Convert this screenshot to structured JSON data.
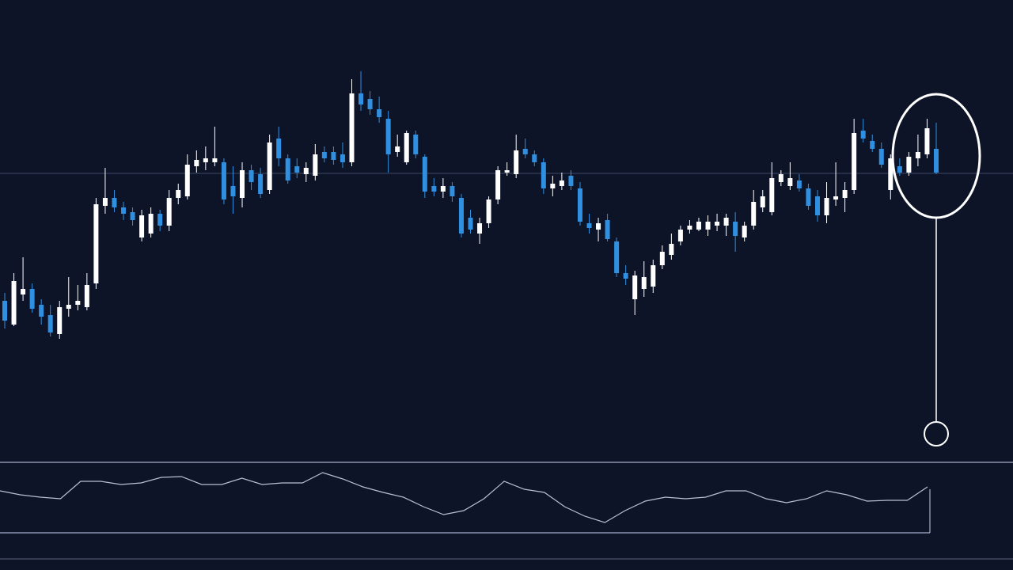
{
  "chart_data": {
    "type": "candlestick",
    "up_color": "#ffffff",
    "down_color": "#2f8fe0",
    "background": "#0d1428",
    "ylim": [
      20,
      600
    ],
    "level": 381,
    "open": [
      220,
      190,
      228,
      235,
      215,
      202,
      178,
      210,
      215,
      212,
      242,
      340,
      350,
      338,
      332,
      300,
      305,
      330,
      315,
      350,
      352,
      390,
      395,
      395,
      395,
      365,
      350,
      385,
      380,
      360,
      425,
      400,
      390,
      380,
      378,
      408,
      408,
      405,
      395,
      482,
      475,
      462,
      450,
      408,
      395,
      430,
      402,
      365,
      358,
      365,
      350,
      325,
      305,
      318,
      348,
      382,
      380,
      412,
      405,
      395,
      362,
      365,
      378,
      362,
      318,
      310,
      322,
      295,
      255,
      222,
      235,
      238,
      265,
      278,
      295,
      310,
      310,
      310,
      315,
      315,
      320,
      300,
      315,
      338,
      332,
      370,
      365,
      372,
      362,
      352,
      328,
      348,
      350,
      360,
      435,
      422,
      412,
      360,
      390,
      382,
      400,
      405,
      412
    ],
    "high": [
      230,
      255,
      275,
      242,
      222,
      215,
      220,
      250,
      240,
      255,
      350,
      388,
      360,
      345,
      338,
      335,
      338,
      335,
      360,
      368,
      405,
      410,
      415,
      440,
      400,
      390,
      395,
      392,
      388,
      430,
      440,
      405,
      400,
      395,
      418,
      415,
      415,
      420,
      500,
      510,
      485,
      478,
      460,
      430,
      435,
      435,
      405,
      375,
      375,
      370,
      355,
      335,
      325,
      352,
      390,
      395,
      430,
      425,
      410,
      400,
      378,
      382,
      385,
      370,
      330,
      325,
      330,
      300,
      265,
      258,
      270,
      272,
      290,
      305,
      315,
      322,
      325,
      328,
      330,
      330,
      332,
      320,
      360,
      360,
      395,
      385,
      395,
      380,
      368,
      360,
      370,
      395,
      370,
      450,
      450,
      430,
      420,
      405,
      400,
      408,
      430,
      450,
      445
    ],
    "low": [
      185,
      188,
      220,
      205,
      190,
      175,
      172,
      200,
      208,
      208,
      235,
      330,
      332,
      322,
      315,
      295,
      300,
      308,
      308,
      342,
      348,
      382,
      385,
      390,
      342,
      330,
      338,
      360,
      350,
      355,
      390,
      368,
      375,
      370,
      372,
      395,
      392,
      388,
      390,
      460,
      455,
      445,
      382,
      402,
      392,
      400,
      350,
      352,
      350,
      345,
      300,
      305,
      292,
      312,
      342,
      378,
      375,
      400,
      390,
      355,
      352,
      360,
      360,
      315,
      305,
      295,
      295,
      250,
      240,
      202,
      225,
      230,
      260,
      272,
      290,
      305,
      308,
      302,
      308,
      302,
      282,
      295,
      310,
      332,
      328,
      365,
      360,
      358,
      335,
      320,
      318,
      340,
      332,
      355,
      420,
      408,
      388,
      348,
      378,
      378,
      390,
      400,
      380
    ],
    "close": [
      195,
      245,
      235,
      210,
      200,
      180,
      212,
      215,
      220,
      240,
      342,
      350,
      338,
      330,
      322,
      328,
      330,
      315,
      350,
      360,
      392,
      398,
      400,
      400,
      348,
      352,
      385,
      370,
      355,
      420,
      400,
      372,
      382,
      388,
      405,
      400,
      398,
      395,
      482,
      468,
      462,
      452,
      405,
      415,
      432,
      405,
      358,
      358,
      365,
      352,
      305,
      310,
      318,
      348,
      385,
      385,
      410,
      405,
      395,
      362,
      368,
      372,
      365,
      320,
      312,
      318,
      298,
      255,
      248,
      252,
      250,
      265,
      282,
      292,
      310,
      315,
      320,
      320,
      320,
      325,
      302,
      315,
      345,
      352,
      375,
      380,
      375,
      362,
      340,
      328,
      350,
      352,
      360,
      432,
      425,
      412,
      392,
      400,
      382,
      402,
      408,
      438,
      382
    ],
    "indicator": {
      "ylim": [
        0,
        88
      ],
      "values": [
        53,
        48,
        45,
        43,
        65,
        65,
        61,
        63,
        70,
        71,
        61,
        61,
        69,
        61,
        63,
        63,
        76,
        68,
        58,
        51,
        45,
        33,
        23,
        28,
        43,
        65,
        55,
        51,
        33,
        21,
        13,
        28,
        40,
        45,
        43,
        45,
        53,
        53,
        43,
        38,
        43,
        53,
        48,
        40,
        41,
        41,
        58
      ]
    }
  }
}
